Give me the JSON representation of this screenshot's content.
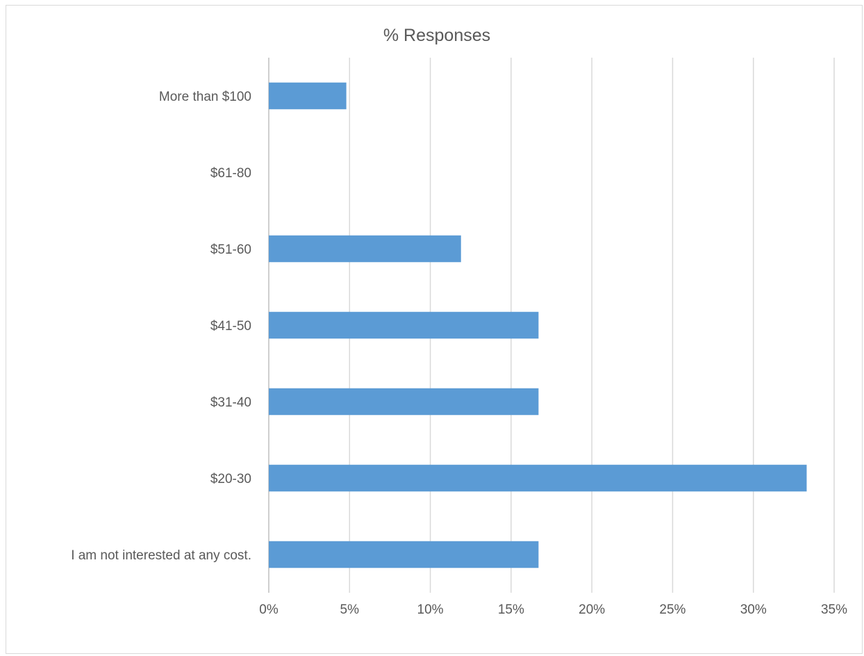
{
  "chart_data": {
    "type": "bar",
    "orientation": "horizontal",
    "title": "% Responses",
    "xlabel": "",
    "ylabel": "",
    "categories": [
      "I am not interested at any cost.",
      "$20-30",
      "$31-40",
      "$41-50",
      "$51-60",
      "$61-80",
      "More than $100"
    ],
    "values": [
      16.7,
      33.3,
      16.7,
      16.7,
      11.9,
      0,
      4.8
    ],
    "value_unit": "%",
    "xlim": [
      0,
      35
    ],
    "x_ticks": [
      0,
      5,
      10,
      15,
      20,
      25,
      30,
      35
    ],
    "x_tick_labels": [
      "0%",
      "5%",
      "10%",
      "15%",
      "20%",
      "25%",
      "30%",
      "35%"
    ],
    "grid": "vertical",
    "legend": "none",
    "colors": {
      "bar": "#5b9bd5",
      "grid": "#d9d9d9",
      "text": "#595959"
    }
  }
}
